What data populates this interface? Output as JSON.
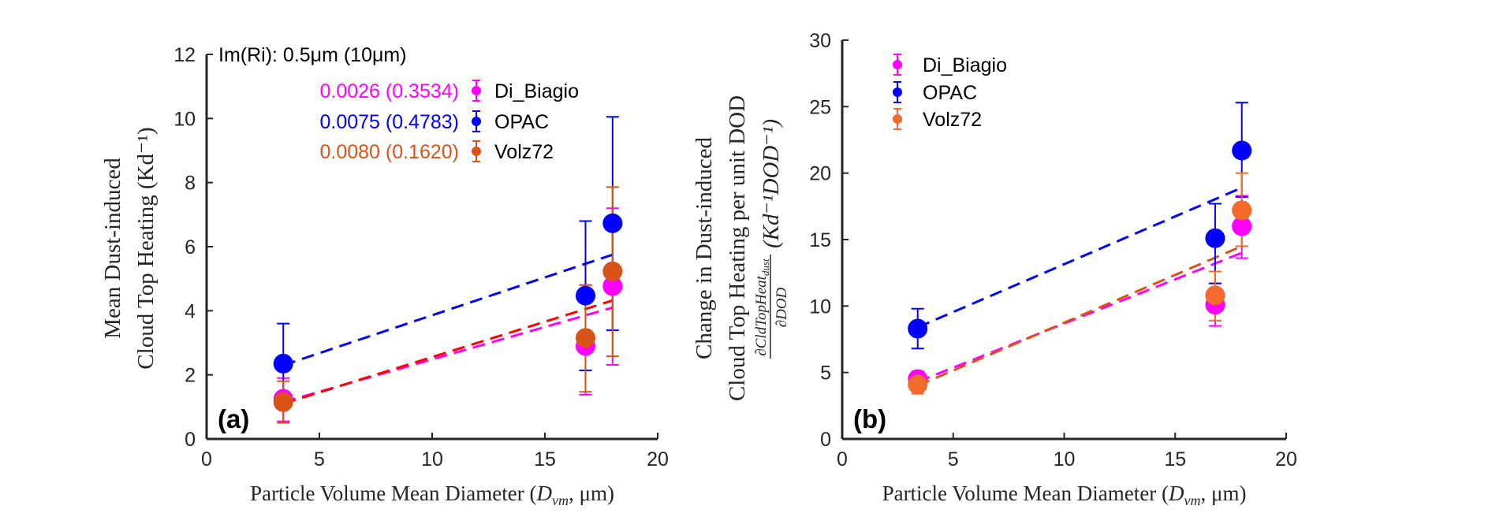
{
  "colors": {
    "di_biagio": "#ff00ff",
    "opac": "#0000ff",
    "volz72_a": "#d95319",
    "volz72_b": "#f26b2a",
    "volz72_fit_a": "#ff0000",
    "volz72_fit_b": "#d95319",
    "axis": "#262626"
  },
  "chart_data": [
    {
      "type": "scatter",
      "panel_label": "(a)",
      "xlabel": "Particle Volume Mean Diameter (D_vm, μm)",
      "xlabel_parts": {
        "main": "Particle Volume Mean Diameter (",
        "var": "D",
        "sub": "vm",
        "rest": ", μm)"
      },
      "ylabel_lines": [
        "Mean Dust-induced",
        "Cloud Top Heating (Kd⁻¹)"
      ],
      "xlim": [
        0,
        20
      ],
      "ylim": [
        0,
        12
      ],
      "xticks": [
        0,
        5,
        10,
        15,
        20
      ],
      "yticks": [
        0,
        2,
        4,
        6,
        8,
        10,
        12
      ],
      "grid": false,
      "legend_placement": "top-left",
      "annotation_title": "Im(Ri): 0.5μm (10μm)",
      "series": [
        {
          "name": "Di_Biagio",
          "legend_value": "0.0026 (0.3534)",
          "color_key": "di_biagio",
          "fit_color_key": "di_biagio",
          "x": [
            3.4,
            16.8,
            18.0
          ],
          "y": [
            1.25,
            2.9,
            4.77
          ],
          "err_low": [
            0.55,
            1.38,
            2.31
          ],
          "err_high": [
            1.9,
            4.8,
            7.2
          ],
          "fit": {
            "x": [
              3.4,
              18.0
            ],
            "y": [
              1.15,
              4.1
            ]
          }
        },
        {
          "name": "OPAC",
          "legend_value": "0.0075 (0.4783)",
          "color_key": "opac",
          "fit_color_key": "opac",
          "x": [
            3.4,
            16.8,
            18.0
          ],
          "y": [
            2.35,
            4.47,
            6.73
          ],
          "err_low": [
            1.1,
            2.14,
            3.39
          ],
          "err_high": [
            3.6,
            6.8,
            10.05
          ],
          "fit": {
            "x": [
              3.4,
              18.0
            ],
            "y": [
              2.3,
              5.75
            ]
          }
        },
        {
          "name": "Volz72",
          "legend_value": "0.0080 (0.1620)",
          "color_key": "volz72_a",
          "fit_color_key": "volz72_fit_a",
          "x": [
            3.4,
            16.8,
            18.0
          ],
          "y": [
            1.15,
            3.15,
            5.23
          ],
          "err_low": [
            0.5,
            1.47,
            2.58
          ],
          "err_high": [
            1.8,
            4.8,
            7.86
          ],
          "fit": {
            "x": [
              3.4,
              18.0
            ],
            "y": [
              1.1,
              4.32
            ]
          }
        }
      ]
    },
    {
      "type": "scatter",
      "panel_label": "(b)",
      "xlabel": "Particle Volume Mean Diameter (D_vm, μm)",
      "xlabel_parts": {
        "main": "Particle Volume Mean Diameter (",
        "var": "D",
        "sub": "vm",
        "rest": ", μm)"
      },
      "ylabel_lines": [
        "Change in Dust-induced",
        "Cloud Top Heating per unit DOD"
      ],
      "ylabel_fraction": {
        "numerator": "∂CldTopHeat",
        "numerator_sub": "dust",
        "denominator": "∂DOD",
        "units": "(Kd⁻¹DOD⁻¹)"
      },
      "xlim": [
        0,
        20
      ],
      "ylim": [
        0,
        30
      ],
      "xticks": [
        0,
        5,
        10,
        15,
        20
      ],
      "yticks": [
        0,
        5,
        10,
        15,
        20,
        25,
        30
      ],
      "grid": false,
      "legend_placement": "top-left",
      "series": [
        {
          "name": "Di_Biagio",
          "color_key": "di_biagio",
          "fit_color_key": "di_biagio",
          "x": [
            3.4,
            16.8,
            18.0
          ],
          "y": [
            4.5,
            10.1,
            16.0
          ],
          "err_low": [
            4.0,
            8.5,
            13.6
          ],
          "err_high": [
            5.1,
            11.7,
            18.3
          ],
          "fit": {
            "x": [
              3.4,
              18.0
            ],
            "y": [
              4.3,
              14.0
            ]
          }
        },
        {
          "name": "OPAC",
          "color_key": "opac",
          "fit_color_key": "opac",
          "x": [
            3.4,
            16.8,
            18.0
          ],
          "y": [
            8.3,
            15.1,
            21.7
          ],
          "err_low": [
            6.8,
            11.7,
            18.2
          ],
          "err_high": [
            9.8,
            17.7,
            25.3
          ],
          "fit": {
            "x": [
              3.4,
              18.0
            ],
            "y": [
              8.4,
              18.9
            ]
          }
        },
        {
          "name": "Volz72",
          "color_key": "volz72_b",
          "fit_color_key": "volz72_fit_b",
          "x": [
            3.4,
            16.8,
            18.0
          ],
          "y": [
            4.1,
            10.8,
            17.2
          ],
          "err_low": [
            3.4,
            8.9,
            14.5
          ],
          "err_high": [
            4.7,
            12.6,
            20.0
          ],
          "fit": {
            "x": [
              3.4,
              18.0
            ],
            "y": [
              4.0,
              14.5
            ]
          }
        }
      ]
    }
  ]
}
